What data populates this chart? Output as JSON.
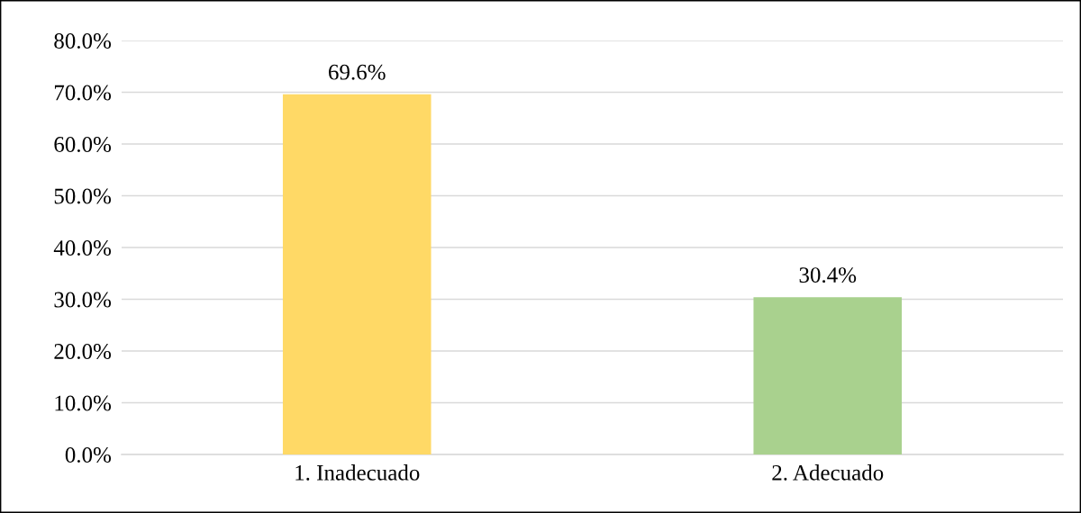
{
  "chart_data": {
    "type": "bar",
    "categories": [
      "1. Inadecuado",
      "2. Adecuado"
    ],
    "values": [
      69.6,
      30.4
    ],
    "colors": [
      "#ffd966",
      "#a9d18e"
    ],
    "value_labels": [
      "69.6%",
      "30.4%"
    ],
    "ylim": [
      0,
      80
    ],
    "yticks": [
      {
        "value": 0,
        "label": "0.0%"
      },
      {
        "value": 10,
        "label": "10.0%"
      },
      {
        "value": 20,
        "label": "20.0%"
      },
      {
        "value": 30,
        "label": "30.0%"
      },
      {
        "value": 40,
        "label": "40.0%"
      },
      {
        "value": 50,
        "label": "50.0%"
      },
      {
        "value": 60,
        "label": "60.0%"
      },
      {
        "value": 70,
        "label": "70.0%"
      },
      {
        "value": 80,
        "label": "80.0%"
      }
    ],
    "grid": "y",
    "legend": false
  }
}
